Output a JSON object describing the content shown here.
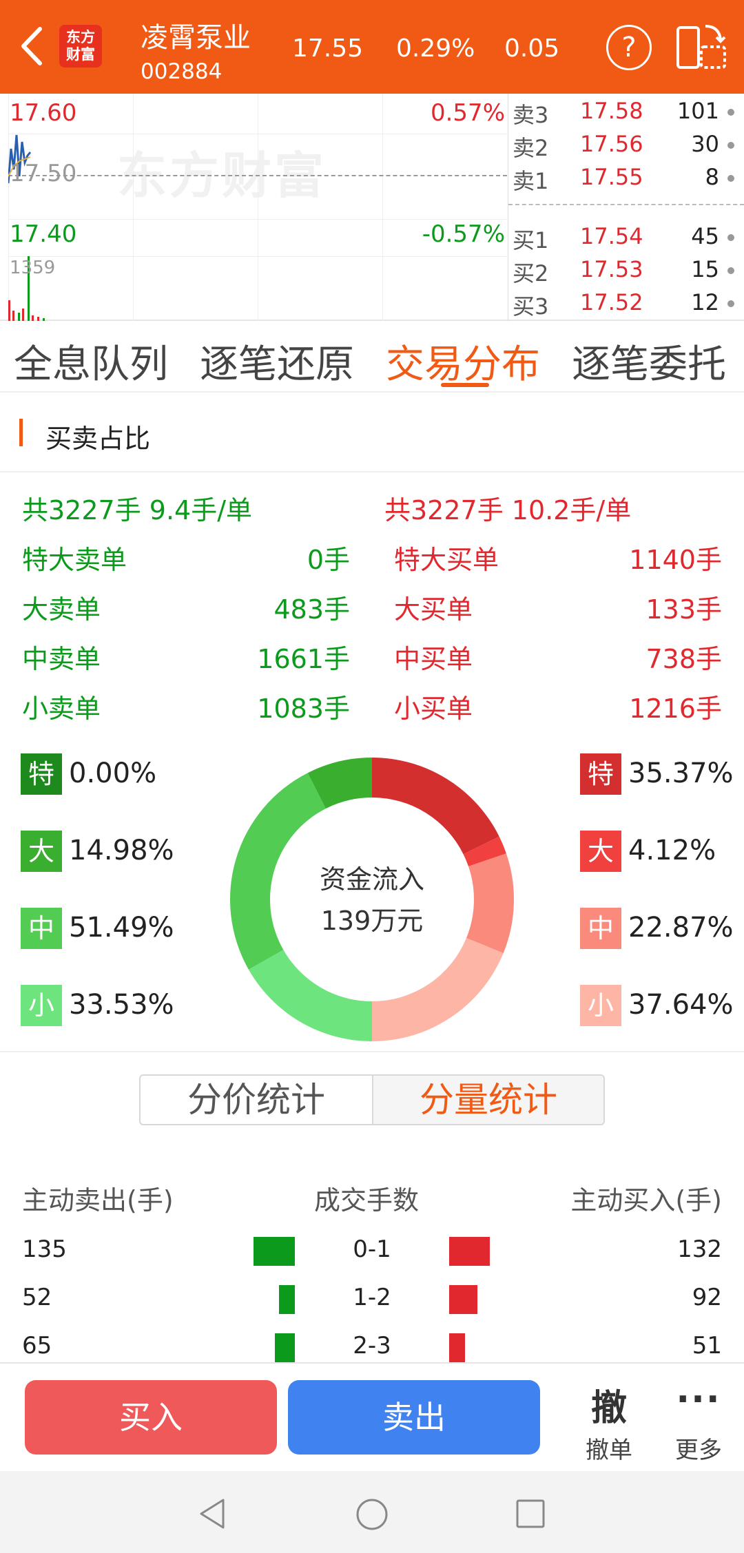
{
  "header": {
    "back_icon": "chevron-left-icon",
    "logo_line1": "东方",
    "logo_line2": "财富",
    "stock_name": "凌霄泵业",
    "stock_code": "002884",
    "price": "17.55",
    "change_pct": "0.29%",
    "change": "0.05",
    "help_label": "?",
    "landscape_icon": "landscape-switch-icon"
  },
  "minichart": {
    "watermark": "东方财富",
    "high_price": "17.60",
    "high_pct": "0.57%",
    "mid_price": "17.50",
    "low_price": "17.40",
    "low_pct": "-0.57%",
    "volume_label": "1359"
  },
  "orderbook": {
    "asks": [
      {
        "label": "卖3",
        "price": "17.58",
        "volume": "101"
      },
      {
        "label": "卖2",
        "price": "17.56",
        "volume": "30"
      },
      {
        "label": "卖1",
        "price": "17.55",
        "volume": "8"
      }
    ],
    "bids": [
      {
        "label": "买1",
        "price": "17.54",
        "volume": "45"
      },
      {
        "label": "买2",
        "price": "17.53",
        "volume": "15"
      },
      {
        "label": "买3",
        "price": "17.52",
        "volume": "12"
      }
    ]
  },
  "tabs": [
    "全息队列",
    "逐笔还原",
    "交易分布",
    "逐笔委托"
  ],
  "active_tab": "交易分布",
  "section_title": "买卖占比",
  "summary": {
    "sell_total": "共3227手 9.4手/单",
    "buy_total": "共3227手 10.2手/单",
    "sell_rows": [
      {
        "label": "特大卖单",
        "value": "0手"
      },
      {
        "label": "大卖单",
        "value": "483手"
      },
      {
        "label": "中卖单",
        "value": "1661手"
      },
      {
        "label": "小卖单",
        "value": "1083手"
      }
    ],
    "buy_rows": [
      {
        "label": "特大买单",
        "value": "1140手"
      },
      {
        "label": "大买单",
        "value": "133手"
      },
      {
        "label": "中买单",
        "value": "738手"
      },
      {
        "label": "小买单",
        "value": "1216手"
      }
    ]
  },
  "distribution": {
    "sell": [
      {
        "badge": "特",
        "pct": "0.00%",
        "value": 0.0,
        "color": "#1e8a1e"
      },
      {
        "badge": "大",
        "pct": "14.98%",
        "value": 14.98,
        "color": "#3aae2e"
      },
      {
        "badge": "中",
        "pct": "51.49%",
        "value": 51.49,
        "color": "#52cc52"
      },
      {
        "badge": "小",
        "pct": "33.53%",
        "value": 33.53,
        "color": "#6ee47e"
      }
    ],
    "buy": [
      {
        "badge": "特",
        "pct": "35.37%",
        "value": 35.37,
        "color": "#d42f2f"
      },
      {
        "badge": "大",
        "pct": "4.12%",
        "value": 4.12,
        "color": "#f0413f"
      },
      {
        "badge": "中",
        "pct": "22.87%",
        "value": 22.87,
        "color": "#fa8a7c"
      },
      {
        "badge": "小",
        "pct": "37.64%",
        "value": 37.64,
        "color": "#fdb6a6"
      }
    ],
    "center_line1": "资金流入",
    "center_line2": "139万元"
  },
  "segmented": {
    "options": [
      "分价统计",
      "分量统计"
    ],
    "active": "分量统计"
  },
  "volume_table": {
    "headers": [
      "主动卖出(手)",
      "成交手数",
      "主动买入(手)"
    ],
    "rows": [
      {
        "sell": "135",
        "range": "0-1",
        "buy": "132"
      },
      {
        "sell": "52",
        "range": "1-2",
        "buy": "92"
      },
      {
        "sell": "65",
        "range": "2-3",
        "buy": "51"
      }
    ]
  },
  "actions": {
    "buy": "买入",
    "sell": "卖出",
    "cancel_icon_char": "撤",
    "cancel_label": "撤单",
    "more_icon_char": "···",
    "more_label": "更多"
  },
  "navbar": [
    "back-triangle-icon",
    "home-circle-icon",
    "recents-square-icon"
  ]
}
